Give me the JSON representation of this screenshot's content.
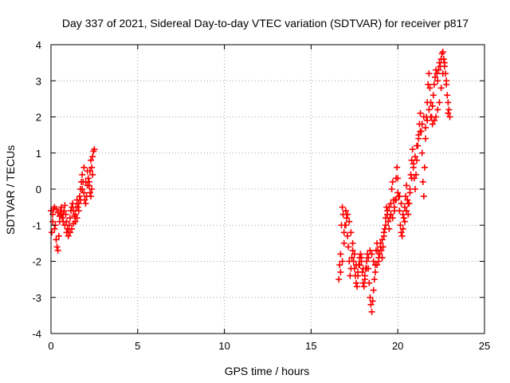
{
  "chart_data": {
    "type": "scatter",
    "title": "Day 337 of 2021, Sidereal Day-to-day VTEC variation (SDTVAR) for receiver p817",
    "xlabel": "GPS time / hours",
    "ylabel": "SDTVAR / TECUs",
    "xlim": [
      0,
      25
    ],
    "ylim": [
      -4,
      4
    ],
    "x_ticks": [
      "0",
      "5",
      "10",
      "15",
      "20",
      "25"
    ],
    "y_ticks": [
      "-4",
      "-3",
      "-2",
      "-1",
      "0",
      "1",
      "2",
      "3",
      "4"
    ],
    "grid": true,
    "marker": "+",
    "color": "#ff0000",
    "series": [
      {
        "points": [
          [
            0.0,
            -0.6
          ],
          [
            0.05,
            -1.2
          ],
          [
            0.1,
            -0.9
          ],
          [
            0.15,
            -0.55
          ],
          [
            0.2,
            -1.1
          ],
          [
            0.25,
            -1.0
          ],
          [
            0.3,
            -1.4
          ],
          [
            0.35,
            -1.6
          ],
          [
            0.4,
            -1.7
          ],
          [
            0.45,
            -1.3
          ],
          [
            0.5,
            -0.9
          ],
          [
            0.55,
            -0.6
          ],
          [
            0.6,
            -0.5
          ],
          [
            0.65,
            -0.8
          ],
          [
            0.7,
            -0.7
          ],
          [
            0.75,
            -0.6
          ],
          [
            0.8,
            -0.45
          ],
          [
            0.85,
            -0.7
          ],
          [
            0.9,
            -0.9
          ],
          [
            0.95,
            -1.1
          ],
          [
            1.0,
            -1.2
          ],
          [
            1.05,
            -1.0
          ],
          [
            1.1,
            -0.8
          ],
          [
            1.15,
            -0.6
          ],
          [
            1.2,
            -0.5
          ],
          [
            1.25,
            -0.4
          ],
          [
            1.3,
            -0.6
          ],
          [
            1.35,
            -0.75
          ],
          [
            1.4,
            -0.7
          ],
          [
            1.45,
            -0.5
          ],
          [
            1.5,
            -0.3
          ],
          [
            1.55,
            -0.5
          ],
          [
            1.6,
            -0.4
          ],
          [
            1.65,
            -0.2
          ],
          [
            1.7,
            0.0
          ],
          [
            1.75,
            0.2
          ],
          [
            1.8,
            0.4
          ],
          [
            1.85,
            0.2
          ],
          [
            1.9,
            -0.1
          ],
          [
            1.95,
            -0.3
          ],
          [
            2.0,
            -0.4
          ],
          [
            2.05,
            -0.2
          ],
          [
            2.1,
            0.1
          ],
          [
            2.15,
            0.3
          ],
          [
            2.2,
            0.1
          ],
          [
            2.25,
            0.5
          ],
          [
            2.3,
            0.8
          ],
          [
            2.35,
            0.6
          ],
          [
            2.4,
            0.9
          ],
          [
            2.45,
            1.05
          ],
          [
            2.5,
            1.1
          ],
          [
            2.4,
            0.4
          ],
          [
            2.35,
            0.0
          ],
          [
            2.3,
            -0.2
          ],
          [
            2.25,
            -0.1
          ],
          [
            2.2,
            0.2
          ],
          [
            2.1,
            0.5
          ],
          [
            2.0,
            0.2
          ],
          [
            1.9,
            0.6
          ],
          [
            1.8,
            0.0
          ],
          [
            1.7,
            -0.3
          ],
          [
            1.6,
            -0.6
          ],
          [
            1.5,
            -0.8
          ],
          [
            1.4,
            -0.9
          ],
          [
            1.3,
            -0.95
          ],
          [
            1.2,
            -1.1
          ],
          [
            1.1,
            -1.2
          ],
          [
            1.0,
            -1.3
          ],
          [
            0.9,
            -1.2
          ],
          [
            0.8,
            -1.0
          ],
          [
            0.7,
            -0.9
          ],
          [
            0.6,
            -0.7
          ],
          [
            0.5,
            -0.75
          ],
          [
            0.4,
            -0.65
          ],
          [
            0.3,
            -0.55
          ],
          [
            0.2,
            -0.5
          ],
          [
            0.1,
            -0.7
          ]
        ]
      },
      {
        "points": [
          [
            16.6,
            -2.5
          ],
          [
            16.65,
            -2.1
          ],
          [
            16.7,
            -1.8
          ],
          [
            16.75,
            -1.0
          ],
          [
            16.8,
            -0.5
          ],
          [
            16.85,
            -0.7
          ],
          [
            16.9,
            -1.2
          ],
          [
            16.95,
            -1.0
          ],
          [
            17.0,
            -0.6
          ],
          [
            17.05,
            -0.8
          ],
          [
            17.1,
            -1.3
          ],
          [
            17.15,
            -1.6
          ],
          [
            17.2,
            -2.0
          ],
          [
            17.25,
            -2.4
          ],
          [
            17.3,
            -2.2
          ],
          [
            17.35,
            -1.9
          ],
          [
            17.4,
            -1.7
          ],
          [
            17.45,
            -2.0
          ],
          [
            17.5,
            -2.2
          ],
          [
            17.55,
            -2.4
          ],
          [
            17.6,
            -2.6
          ],
          [
            17.65,
            -2.7
          ],
          [
            17.7,
            -2.4
          ],
          [
            17.75,
            -2.1
          ],
          [
            17.8,
            -1.9
          ],
          [
            17.85,
            -1.8
          ],
          [
            17.9,
            -2.0
          ],
          [
            17.95,
            -2.3
          ],
          [
            18.0,
            -2.6
          ],
          [
            18.05,
            -2.7
          ],
          [
            18.1,
            -2.5
          ],
          [
            18.15,
            -2.2
          ],
          [
            18.2,
            -2.0
          ],
          [
            18.25,
            -1.8
          ],
          [
            18.3,
            -2.2
          ],
          [
            18.35,
            -2.6
          ],
          [
            18.4,
            -3.0
          ],
          [
            18.45,
            -3.2
          ],
          [
            18.5,
            -3.4
          ],
          [
            18.55,
            -3.1
          ],
          [
            18.6,
            -2.8
          ],
          [
            18.65,
            -2.5
          ],
          [
            18.7,
            -2.1
          ],
          [
            18.75,
            -1.7
          ],
          [
            18.8,
            -1.5
          ],
          [
            18.85,
            -1.7
          ],
          [
            18.9,
            -2.0
          ],
          [
            18.95,
            -1.8
          ],
          [
            19.0,
            -1.5
          ],
          [
            19.05,
            -1.7
          ],
          [
            19.1,
            -1.9
          ],
          [
            19.15,
            -1.6
          ],
          [
            19.2,
            -1.3
          ],
          [
            19.25,
            -1.1
          ],
          [
            19.3,
            -0.8
          ],
          [
            19.35,
            -0.5
          ],
          [
            19.4,
            -0.6
          ],
          [
            19.45,
            -0.9
          ],
          [
            19.5,
            -1.1
          ],
          [
            19.55,
            -0.8
          ],
          [
            19.6,
            -0.4
          ],
          [
            19.65,
            0.0
          ],
          [
            19.7,
            0.2
          ],
          [
            19.75,
            -0.3
          ],
          [
            19.8,
            -0.6
          ],
          [
            19.85,
            -0.3
          ],
          [
            19.9,
            0.3
          ],
          [
            19.95,
            0.6
          ],
          [
            20.0,
            0.3
          ],
          [
            20.05,
            -0.2
          ],
          [
            20.1,
            -0.6
          ],
          [
            20.15,
            -1.0
          ],
          [
            20.2,
            -1.2
          ],
          [
            20.25,
            -1.3
          ],
          [
            20.3,
            -1.1
          ],
          [
            20.35,
            -0.8
          ],
          [
            20.4,
            -0.5
          ],
          [
            20.45,
            -0.2
          ],
          [
            20.5,
            0.1
          ],
          [
            20.55,
            -0.3
          ],
          [
            20.6,
            -0.7
          ],
          [
            20.65,
            -0.4
          ],
          [
            20.7,
            0.0
          ],
          [
            20.75,
            0.4
          ],
          [
            20.8,
            0.8
          ],
          [
            20.85,
            1.1
          ],
          [
            20.9,
            0.7
          ],
          [
            20.95,
            0.3
          ],
          [
            21.0,
            0.0
          ],
          [
            21.05,
            0.4
          ],
          [
            21.1,
            0.8
          ],
          [
            21.15,
            1.2
          ],
          [
            21.2,
            1.5
          ],
          [
            21.25,
            1.8
          ],
          [
            21.3,
            2.1
          ],
          [
            21.35,
            1.6
          ],
          [
            21.4,
            1.0
          ],
          [
            21.45,
            0.2
          ],
          [
            21.5,
            -0.2
          ],
          [
            21.55,
            0.6
          ],
          [
            21.6,
            1.4
          ],
          [
            21.65,
            2.0
          ],
          [
            21.7,
            2.4
          ],
          [
            21.75,
            2.9
          ],
          [
            21.8,
            3.2
          ],
          [
            21.85,
            2.8
          ],
          [
            21.9,
            2.4
          ],
          [
            21.95,
            2.0
          ],
          [
            22.0,
            2.3
          ],
          [
            22.05,
            2.6
          ],
          [
            22.1,
            2.9
          ],
          [
            22.15,
            3.1
          ],
          [
            22.2,
            3.3
          ],
          [
            22.25,
            3.2
          ],
          [
            22.3,
            3.0
          ],
          [
            22.35,
            3.3
          ],
          [
            22.4,
            3.5
          ],
          [
            22.45,
            3.4
          ],
          [
            22.5,
            3.6
          ],
          [
            22.55,
            3.75
          ],
          [
            22.6,
            3.8
          ],
          [
            22.65,
            3.6
          ],
          [
            22.7,
            3.4
          ],
          [
            22.75,
            3.2
          ],
          [
            22.8,
            2.9
          ],
          [
            22.85,
            2.6
          ],
          [
            22.9,
            2.4
          ],
          [
            22.95,
            2.2
          ],
          [
            23.0,
            2.0
          ],
          [
            22.9,
            2.1
          ],
          [
            22.8,
            3.0
          ],
          [
            22.7,
            3.5
          ],
          [
            22.6,
            3.2
          ],
          [
            22.5,
            2.8
          ],
          [
            22.4,
            2.4
          ],
          [
            22.3,
            2.2
          ],
          [
            22.2,
            2.0
          ],
          [
            22.1,
            1.9
          ],
          [
            22.0,
            1.8
          ],
          [
            21.9,
            2.0
          ],
          [
            21.8,
            2.2
          ],
          [
            21.7,
            1.9
          ],
          [
            21.6,
            1.7
          ],
          [
            21.5,
            2.0
          ],
          [
            21.4,
            1.8
          ],
          [
            21.3,
            1.6
          ],
          [
            21.2,
            1.4
          ],
          [
            21.1,
            1.2
          ],
          [
            21.0,
            0.9
          ],
          [
            20.9,
            0.6
          ],
          [
            20.8,
            0.3
          ],
          [
            20.7,
            -0.1
          ],
          [
            20.6,
            -0.4
          ],
          [
            20.5,
            -0.6
          ],
          [
            20.4,
            -0.9
          ],
          [
            20.3,
            -0.7
          ],
          [
            20.2,
            -0.4
          ],
          [
            20.1,
            -0.2
          ],
          [
            20.0,
            -0.1
          ],
          [
            19.9,
            -0.3
          ],
          [
            19.8,
            -0.5
          ],
          [
            19.7,
            -0.8
          ],
          [
            19.6,
            -0.7
          ],
          [
            19.5,
            -0.5
          ],
          [
            19.4,
            -0.7
          ],
          [
            19.3,
            -1.0
          ],
          [
            19.2,
            -1.2
          ],
          [
            19.1,
            -1.4
          ],
          [
            19.0,
            -1.6
          ],
          [
            18.9,
            -1.9
          ],
          [
            18.8,
            -2.1
          ],
          [
            18.7,
            -2.3
          ],
          [
            18.6,
            -2.0
          ],
          [
            18.5,
            -1.8
          ],
          [
            18.4,
            -1.7
          ],
          [
            18.3,
            -1.9
          ],
          [
            18.2,
            -2.2
          ],
          [
            18.1,
            -2.4
          ],
          [
            18.0,
            -2.2
          ],
          [
            17.9,
            -1.9
          ],
          [
            17.8,
            -2.1
          ],
          [
            17.7,
            -2.3
          ],
          [
            17.6,
            -2.1
          ],
          [
            17.5,
            -1.8
          ],
          [
            17.4,
            -1.5
          ],
          [
            17.3,
            -1.2
          ],
          [
            17.2,
            -0.9
          ],
          [
            17.1,
            -0.7
          ],
          [
            17.0,
            -1.0
          ],
          [
            16.9,
            -1.5
          ],
          [
            16.8,
            -2.0
          ],
          [
            16.7,
            -2.3
          ]
        ]
      }
    ]
  }
}
